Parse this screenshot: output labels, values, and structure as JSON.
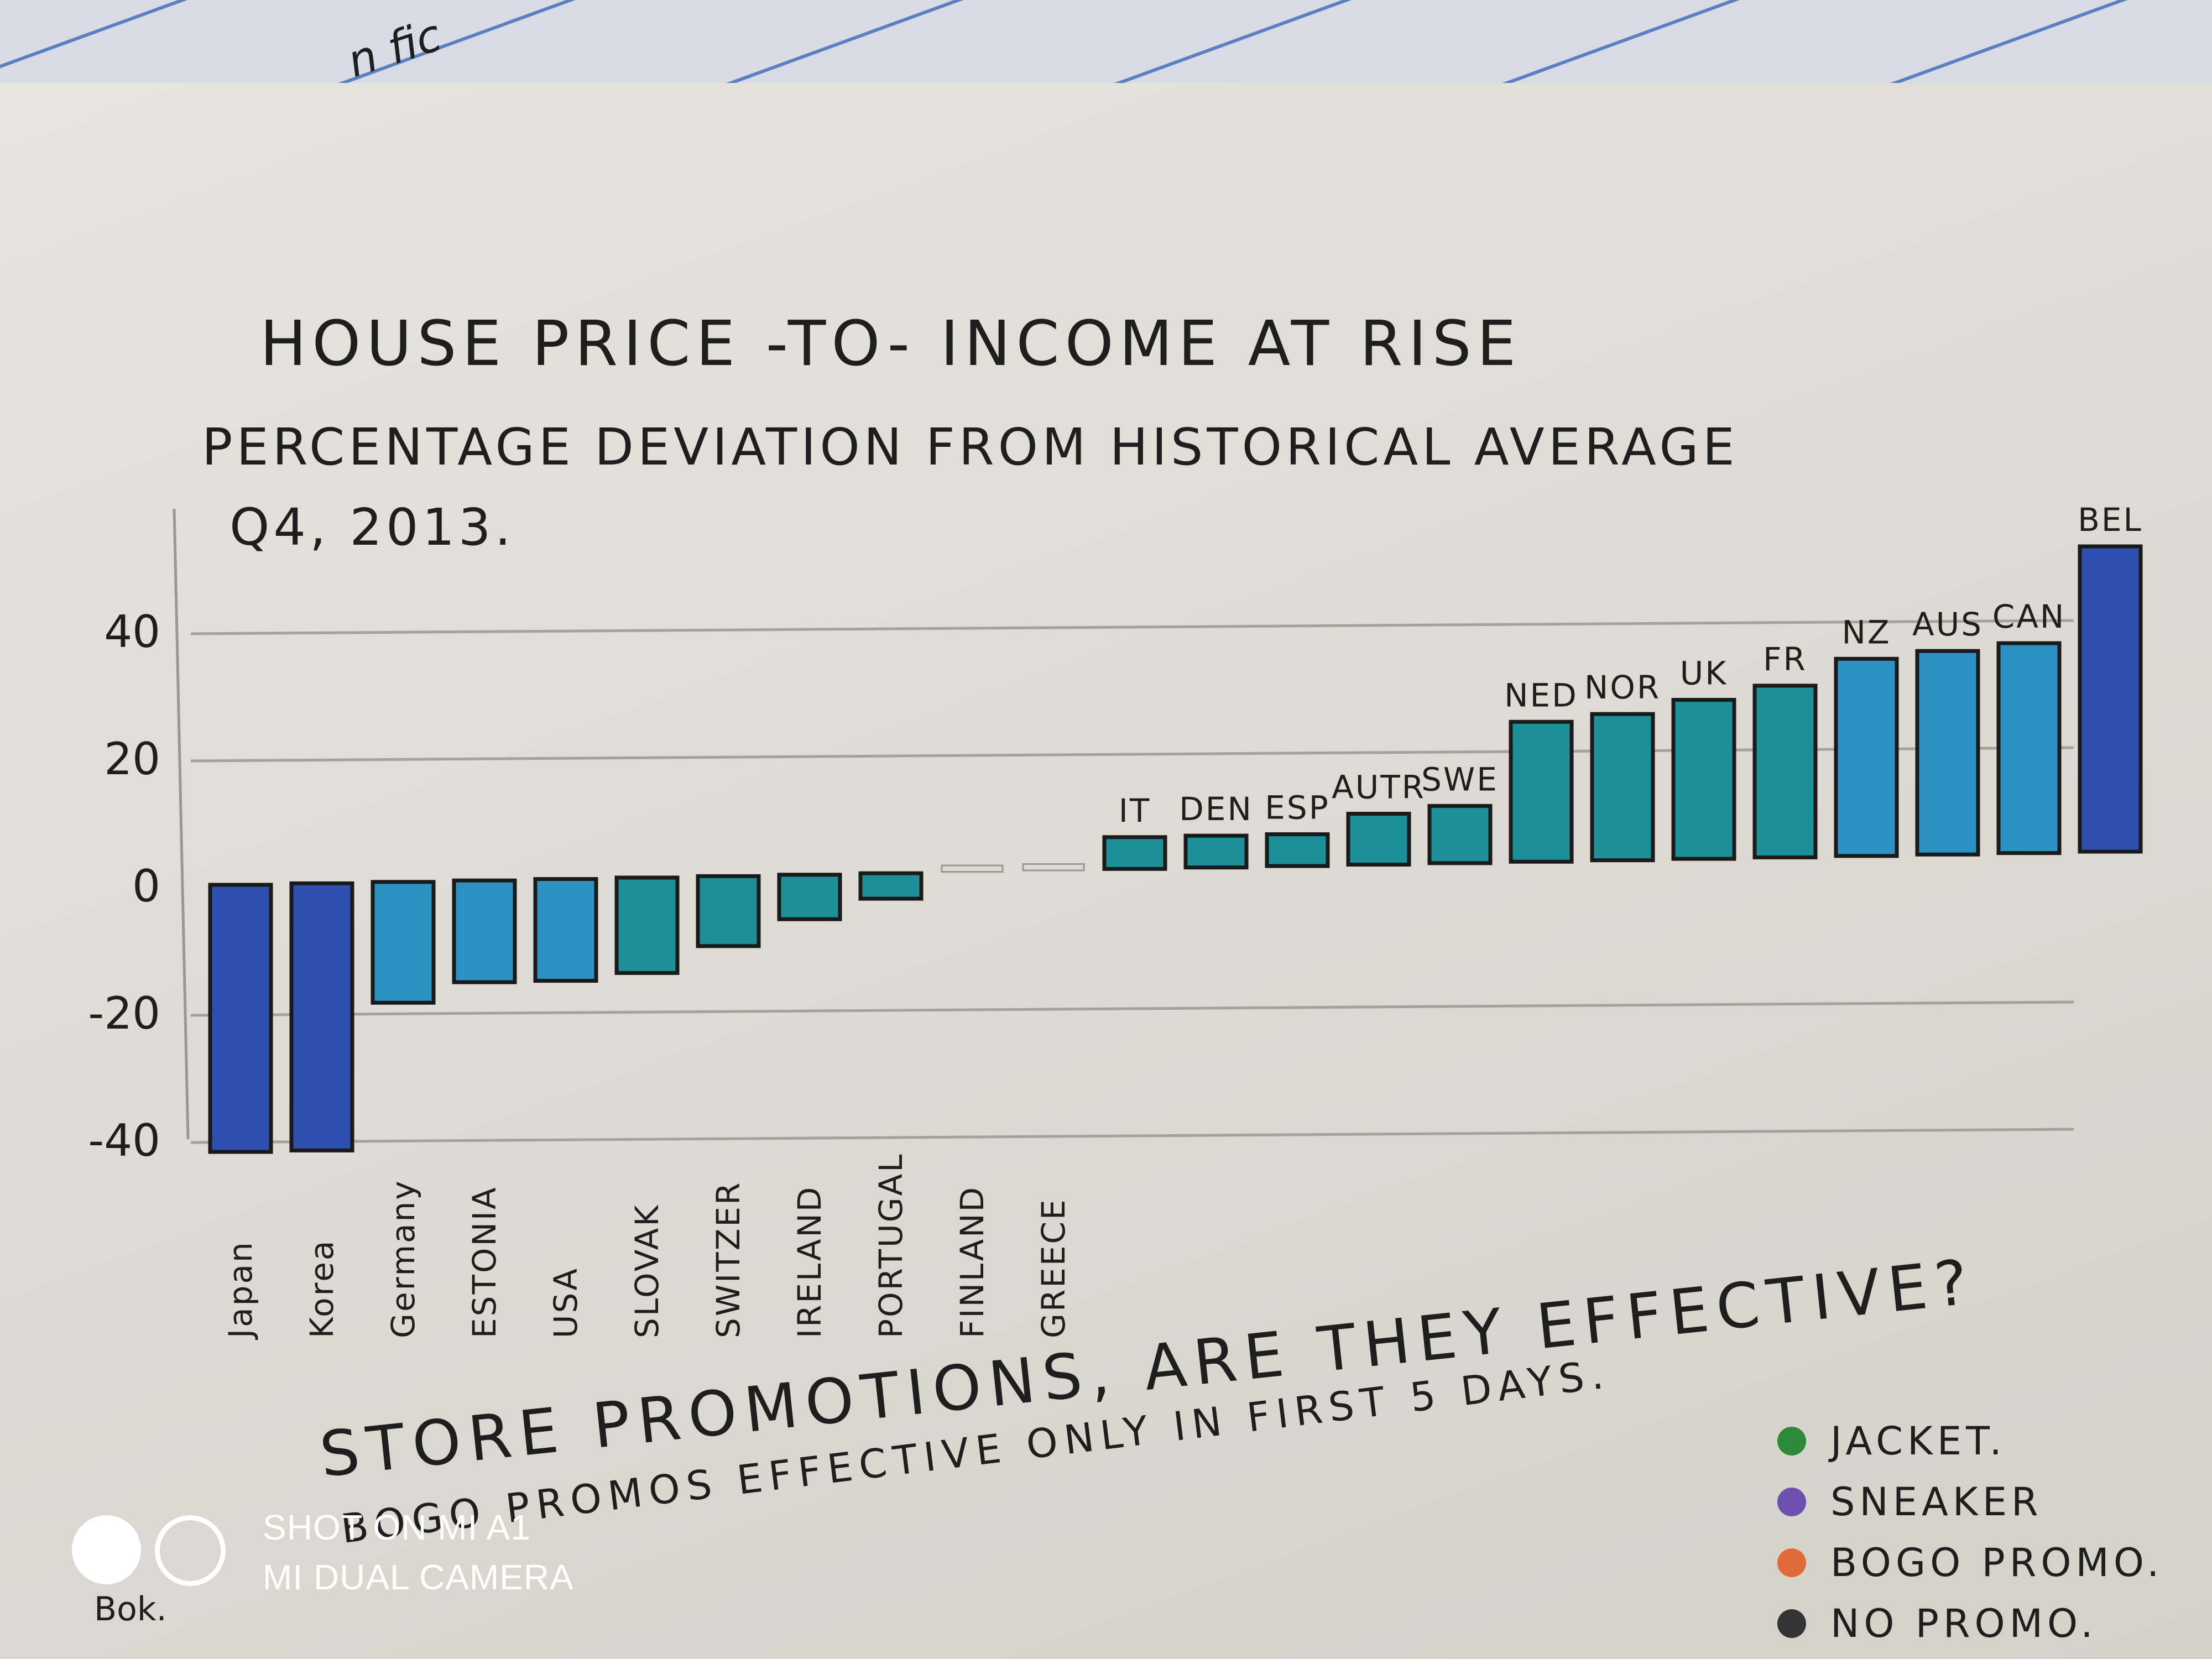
{
  "chart_data": {
    "type": "bar",
    "title": "HOUSE PRICE -TO- INCOME AT RISE",
    "subtitle": "PERCENTAGE DEVIATION FROM HISTORICAL AVERAGE",
    "period": "Q4, 2013.",
    "ylim": [
      -40,
      55
    ],
    "yticks": [
      "40",
      "20",
      "0",
      "-20",
      "-40"
    ],
    "grid": true,
    "bar_colors": {
      "dark": "#2f4fae",
      "mid": "#2a93c4",
      "teal": "#1d8f98"
    },
    "categories": [
      "Japan",
      "Korea",
      "Germany",
      "ESTONIA",
      "USA",
      "SLOVAK",
      "SWITZER",
      "IRELAND",
      "PORTUGAL",
      "FINLAND",
      "GREECE",
      "IT",
      "DEN",
      "ESP",
      "AUTR",
      "SWE",
      "NED",
      "NOR",
      "UK",
      "FR",
      "NZ",
      "AUS",
      "CAN",
      "BEL"
    ],
    "values": [
      -42,
      -42,
      -19,
      -16,
      -16,
      -15,
      -11,
      -7,
      -4,
      1,
      1,
      5,
      5,
      5,
      8,
      9,
      22,
      23,
      25,
      27,
      31,
      32,
      33,
      48
    ],
    "colors": [
      "dark",
      "dark",
      "mid",
      "mid",
      "mid",
      "teal",
      "teal",
      "teal",
      "teal",
      "none",
      "none",
      "teal",
      "teal",
      "teal",
      "teal",
      "teal",
      "teal",
      "teal",
      "teal",
      "teal",
      "mid",
      "mid",
      "mid",
      "dark"
    ]
  },
  "second_chart": {
    "title": "STORE PROMOTIONS, ARE THEY EFFECTIVE?",
    "subtitle": "BOGO PROMOS EFFECTIVE ONLY IN FIRST 5 DAYS.",
    "legend": [
      {
        "label": "JACKET.",
        "color": "#2c8a3a"
      },
      {
        "label": "SNEAKER",
        "color": "#6d4fb0"
      },
      {
        "label": "BOGO PROMO.",
        "color": "#e06a3a"
      },
      {
        "label": "NO PROMO.",
        "color": "#333333"
      }
    ],
    "margin_note": "Bok."
  },
  "top_sheet_fragment": "n fic",
  "camera": {
    "line1": "SHOT ON MI A1",
    "line2": "MI DUAL CAMERA"
  }
}
